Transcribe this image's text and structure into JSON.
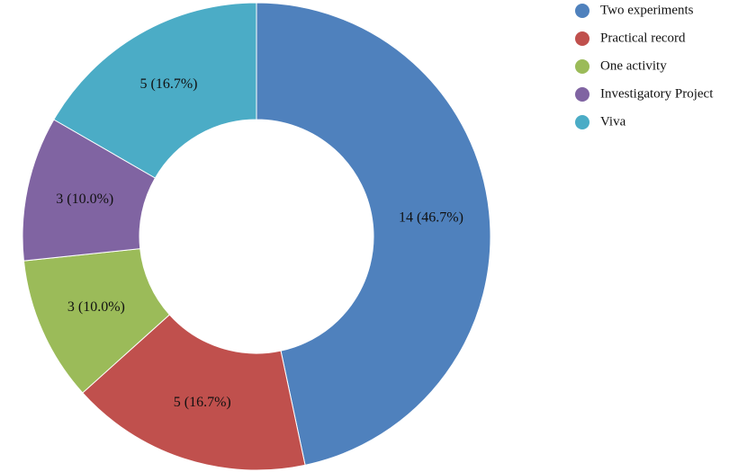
{
  "chart_data": {
    "type": "pie",
    "donut": true,
    "legend_position": "top-right",
    "categories": [
      "Two experiments",
      "Practical record",
      "One activity",
      "Investigatory Project",
      "Viva"
    ],
    "values": [
      14,
      5,
      3,
      3,
      5
    ],
    "labels": [
      "14 (46.7%)",
      "5 (16.7%)",
      "3 (10.0%)",
      "3 (10.0%)",
      "5 (16.7%)"
    ],
    "colors": [
      "#4f81bd",
      "#c0504d",
      "#9bbb59",
      "#8064a2",
      "#4bacc6"
    ]
  }
}
